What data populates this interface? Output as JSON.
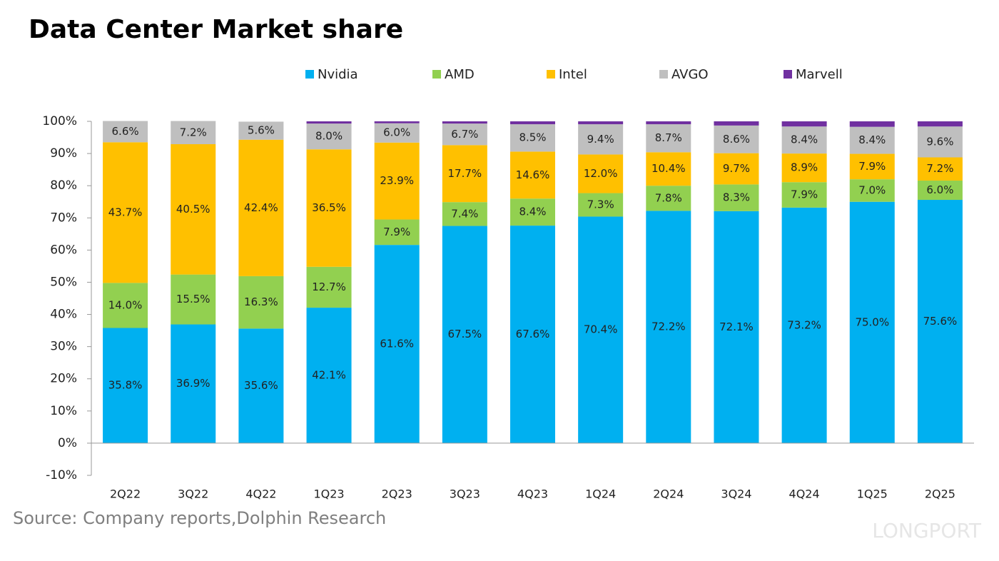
{
  "chart_data": {
    "type": "stacked-bar",
    "title": "Data Center  Market share",
    "source": "Source: Company reports,Dolphin Research",
    "watermark": "LONGPORT",
    "categories": [
      "2Q22",
      "3Q22",
      "4Q22",
      "1Q23",
      "2Q23",
      "3Q23",
      "4Q23",
      "1Q24",
      "2Q24",
      "3Q24",
      "4Q24",
      "1Q25",
      "2Q25"
    ],
    "series": [
      {
        "name": "Nvidia",
        "color": "#00b0f0",
        "values": [
          35.8,
          36.9,
          35.6,
          42.1,
          61.6,
          67.5,
          67.6,
          70.4,
          72.2,
          72.1,
          73.2,
          75.0,
          75.6
        ],
        "value_labels": [
          "35.8%",
          "36.9%",
          "35.6%",
          "42.1%",
          "61.6%",
          "67.5%",
          "67.6%",
          "70.4%",
          "72.2%",
          "72.1%",
          "73.2%",
          "75.0%",
          "75.6%"
        ]
      },
      {
        "name": "AMD",
        "color": "#92d050",
        "values": [
          14.0,
          15.5,
          16.3,
          12.7,
          7.9,
          7.4,
          8.4,
          7.3,
          7.8,
          8.3,
          7.9,
          7.0,
          6.0
        ],
        "value_labels": [
          "14.0%",
          "15.5%",
          "16.3%",
          "12.7%",
          "7.9%",
          "7.4%",
          "8.4%",
          "7.3%",
          "7.8%",
          "8.3%",
          "7.9%",
          "7.0%",
          "6.0%"
        ]
      },
      {
        "name": "Intel",
        "color": "#ffc000",
        "values": [
          43.7,
          40.5,
          42.4,
          36.5,
          23.9,
          17.7,
          14.6,
          12.0,
          10.4,
          9.7,
          8.9,
          7.9,
          7.2
        ],
        "value_labels": [
          "43.7%",
          "40.5%",
          "42.4%",
          "36.5%",
          "23.9%",
          "17.7%",
          "14.6%",
          "12.0%",
          "10.4%",
          "9.7%",
          "8.9%",
          "7.9%",
          "7.2%"
        ]
      },
      {
        "name": "AVGO",
        "color": "#bfbfbf",
        "values": [
          6.6,
          7.2,
          5.6,
          8.0,
          6.0,
          6.7,
          8.5,
          9.4,
          8.7,
          8.6,
          8.4,
          8.4,
          9.6
        ],
        "value_labels": [
          "6.6%",
          "7.2%",
          "5.6%",
          "8.0%",
          "6.0%",
          "6.7%",
          "8.5%",
          "9.4%",
          "8.7%",
          "8.6%",
          "8.4%",
          "8.4%",
          "9.6%"
        ]
      },
      {
        "name": "Marvell",
        "color": "#7030a0",
        "values": [
          0,
          0,
          0,
          0.7,
          0.6,
          0.7,
          0.9,
          0.9,
          0.9,
          1.3,
          1.6,
          1.7,
          1.6
        ]
      }
    ],
    "ylim": [
      -10,
      100
    ],
    "yticks": [
      {
        "value": -10,
        "label": "-10%"
      },
      {
        "value": 0,
        "label": "0%"
      },
      {
        "value": 10,
        "label": "10%"
      },
      {
        "value": 20,
        "label": "20%"
      },
      {
        "value": 30,
        "label": "30%"
      },
      {
        "value": 40,
        "label": "40%"
      },
      {
        "value": 50,
        "label": "50%"
      },
      {
        "value": 60,
        "label": "60%"
      },
      {
        "value": 70,
        "label": "70%"
      },
      {
        "value": 80,
        "label": "80%"
      },
      {
        "value": 90,
        "label": "90%"
      },
      {
        "value": 100,
        "label": "100%"
      }
    ],
    "grid": false
  }
}
